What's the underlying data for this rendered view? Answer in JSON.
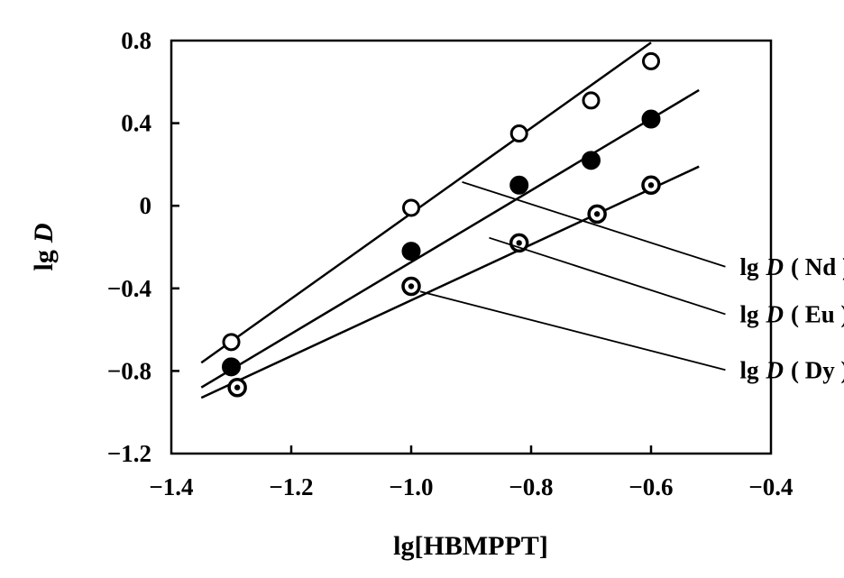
{
  "chart_data": {
    "type": "scatter",
    "title": "",
    "xlabel": "lg[HBMPPT]",
    "ylabel_prefix": "lg",
    "ylabel_var": "D",
    "xlim": [
      -1.4,
      -0.4
    ],
    "ylim": [
      -1.2,
      0.8
    ],
    "xticks": [
      -1.4,
      -1.2,
      -1.0,
      -0.8,
      -0.6,
      -0.4
    ],
    "xtick_labels": [
      "−1.4",
      "−1.2",
      "−1.0",
      "−0.8",
      "−0.6",
      "−0.4"
    ],
    "yticks": [
      0.8,
      0.4,
      0,
      -0.4,
      -0.8,
      -1.2
    ],
    "ytick_labels": [
      "0.8",
      "0.4",
      "0",
      "−0.4",
      "−0.8",
      "−1.2"
    ],
    "grid": false,
    "series": [
      {
        "name": "lg D ( Nd )",
        "label_prefix": "lg",
        "label_var": "D",
        "label_element": "( Nd )",
        "marker": "open-circle",
        "x": [
          -1.3,
          -1.0,
          -0.82,
          -0.7,
          -0.6
        ],
        "y": [
          -0.66,
          -0.01,
          0.35,
          0.51,
          0.7
        ],
        "fit": {
          "x": [
            -1.35,
            -0.6
          ],
          "y": [
            -0.76,
            0.79
          ]
        }
      },
      {
        "name": "lg D ( Eu )",
        "label_prefix": "lg",
        "label_var": "D",
        "label_element": "( Eu )",
        "marker": "filled-circle",
        "x": [
          -1.3,
          -1.0,
          -0.82,
          -0.7,
          -0.6
        ],
        "y": [
          -0.78,
          -0.22,
          0.1,
          0.22,
          0.42
        ],
        "fit": {
          "x": [
            -1.35,
            -0.52
          ],
          "y": [
            -0.88,
            0.56
          ]
        }
      },
      {
        "name": "lg D ( Dy )",
        "label_prefix": "lg",
        "label_var": "D",
        "label_element": "( Dy )",
        "marker": "dotted-circle",
        "x": [
          -1.29,
          -1.0,
          -0.82,
          -0.69,
          -0.6
        ],
        "y": [
          -0.88,
          -0.39,
          -0.18,
          -0.04,
          0.1
        ],
        "fit": {
          "x": [
            -1.35,
            -0.52
          ],
          "y": [
            -0.93,
            0.19
          ]
        }
      }
    ]
  }
}
